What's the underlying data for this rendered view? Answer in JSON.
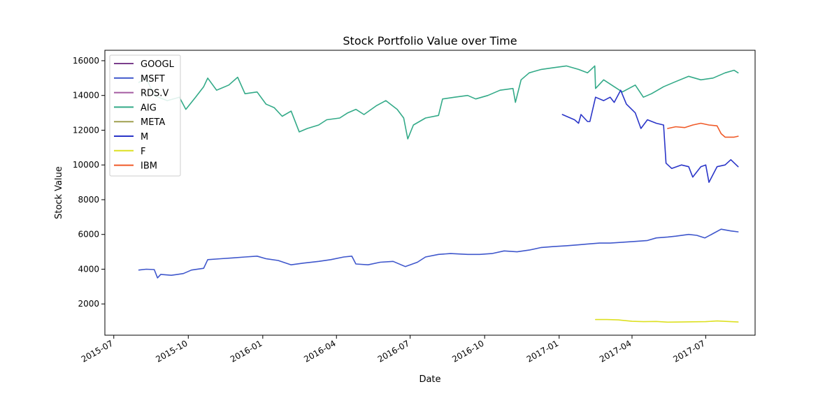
{
  "chart_data": {
    "type": "line",
    "title": "Stock Portfolio Value over Time",
    "xlabel": "Date",
    "ylabel": "Stock Value",
    "x_type": "date",
    "xlim": [
      "2015-06-20",
      "2017-08-31"
    ],
    "ylim": [
      200,
      16600
    ],
    "x_ticks": [
      {
        "date": "2015-07-01",
        "label": "2015-07"
      },
      {
        "date": "2015-10-01",
        "label": "2015-10"
      },
      {
        "date": "2016-01-01",
        "label": "2016-01"
      },
      {
        "date": "2016-04-01",
        "label": "2016-04"
      },
      {
        "date": "2016-07-01",
        "label": "2016-07"
      },
      {
        "date": "2016-10-01",
        "label": "2016-10"
      },
      {
        "date": "2017-01-01",
        "label": "2017-01"
      },
      {
        "date": "2017-04-01",
        "label": "2017-04"
      },
      {
        "date": "2017-07-01",
        "label": "2017-07"
      }
    ],
    "y_ticks": [
      2000,
      4000,
      6000,
      8000,
      10000,
      12000,
      14000,
      16000
    ],
    "grid": false,
    "legend_position": "top-left",
    "series": [
      {
        "name": "GOOGL",
        "color": "#7b3f8c",
        "points": []
      },
      {
        "name": "MSFT",
        "color": "#3f57cc",
        "points": [
          [
            "2015-08-01",
            3950
          ],
          [
            "2015-08-10",
            4000
          ],
          [
            "2015-08-20",
            3980
          ],
          [
            "2015-08-24",
            3500
          ],
          [
            "2015-08-28",
            3700
          ],
          [
            "2015-09-10",
            3650
          ],
          [
            "2015-09-25",
            3750
          ],
          [
            "2015-10-05",
            3950
          ],
          [
            "2015-10-20",
            4050
          ],
          [
            "2015-10-25",
            4550
          ],
          [
            "2015-11-10",
            4600
          ],
          [
            "2015-11-25",
            4650
          ],
          [
            "2015-12-10",
            4700
          ],
          [
            "2015-12-25",
            4750
          ],
          [
            "2016-01-05",
            4600
          ],
          [
            "2016-01-20",
            4500
          ],
          [
            "2016-02-05",
            4250
          ],
          [
            "2016-02-20",
            4350
          ],
          [
            "2016-03-10",
            4450
          ],
          [
            "2016-03-25",
            4550
          ],
          [
            "2016-04-10",
            4700
          ],
          [
            "2016-04-20",
            4750
          ],
          [
            "2016-04-25",
            4300
          ],
          [
            "2016-05-10",
            4250
          ],
          [
            "2016-05-25",
            4400
          ],
          [
            "2016-06-10",
            4450
          ],
          [
            "2016-06-25",
            4150
          ],
          [
            "2016-07-10",
            4400
          ],
          [
            "2016-07-20",
            4700
          ],
          [
            "2016-08-05",
            4850
          ],
          [
            "2016-08-20",
            4900
          ],
          [
            "2016-09-10",
            4850
          ],
          [
            "2016-09-25",
            4850
          ],
          [
            "2016-10-10",
            4900
          ],
          [
            "2016-10-25",
            5050
          ],
          [
            "2016-11-10",
            5000
          ],
          [
            "2016-11-25",
            5100
          ],
          [
            "2016-12-10",
            5250
          ],
          [
            "2016-12-25",
            5300
          ],
          [
            "2017-01-10",
            5350
          ],
          [
            "2017-01-25",
            5400
          ],
          [
            "2017-02-05",
            5450
          ],
          [
            "2017-02-20",
            5500
          ],
          [
            "2017-03-05",
            5500
          ],
          [
            "2017-03-20",
            5550
          ],
          [
            "2017-04-05",
            5600
          ],
          [
            "2017-04-20",
            5650
          ],
          [
            "2017-05-01",
            5800
          ],
          [
            "2017-05-15",
            5850
          ],
          [
            "2017-05-25",
            5900
          ],
          [
            "2017-06-10",
            6000
          ],
          [
            "2017-06-20",
            5950
          ],
          [
            "2017-06-30",
            5800
          ],
          [
            "2017-07-10",
            6050
          ],
          [
            "2017-07-20",
            6300
          ],
          [
            "2017-08-01",
            6200
          ],
          [
            "2017-08-10",
            6150
          ]
        ]
      },
      {
        "name": "RDS.V",
        "color": "#a45ba0",
        "points": []
      },
      {
        "name": "AIG",
        "color": "#33aa88",
        "points": [
          [
            "2015-08-01",
            14750
          ],
          [
            "2015-08-10",
            15000
          ],
          [
            "2015-08-20",
            14000
          ],
          [
            "2015-09-05",
            13700
          ],
          [
            "2015-09-20",
            13900
          ],
          [
            "2015-09-28",
            13200
          ],
          [
            "2015-10-10",
            13900
          ],
          [
            "2015-10-20",
            14500
          ],
          [
            "2015-10-25",
            15000
          ],
          [
            "2015-11-05",
            14300
          ],
          [
            "2015-11-20",
            14600
          ],
          [
            "2015-12-01",
            15050
          ],
          [
            "2015-12-10",
            14100
          ],
          [
            "2015-12-25",
            14200
          ],
          [
            "2016-01-05",
            13500
          ],
          [
            "2016-01-15",
            13300
          ],
          [
            "2016-01-25",
            12800
          ],
          [
            "2016-02-05",
            13100
          ],
          [
            "2016-02-15",
            11900
          ],
          [
            "2016-02-25",
            12100
          ],
          [
            "2016-03-10",
            12300
          ],
          [
            "2016-03-20",
            12600
          ],
          [
            "2016-04-05",
            12700
          ],
          [
            "2016-04-15",
            13000
          ],
          [
            "2016-04-25",
            13200
          ],
          [
            "2016-05-05",
            12900
          ],
          [
            "2016-05-20",
            13400
          ],
          [
            "2016-06-01",
            13700
          ],
          [
            "2016-06-15",
            13200
          ],
          [
            "2016-06-23",
            12700
          ],
          [
            "2016-06-28",
            11500
          ],
          [
            "2016-07-05",
            12300
          ],
          [
            "2016-07-20",
            12700
          ],
          [
            "2016-08-05",
            12850
          ],
          [
            "2016-08-10",
            13800
          ],
          [
            "2016-08-25",
            13900
          ],
          [
            "2016-09-10",
            14000
          ],
          [
            "2016-09-20",
            13800
          ],
          [
            "2016-10-05",
            14000
          ],
          [
            "2016-10-20",
            14300
          ],
          [
            "2016-11-05",
            14400
          ],
          [
            "2016-11-08",
            13600
          ],
          [
            "2016-11-15",
            14900
          ],
          [
            "2016-11-25",
            15300
          ],
          [
            "2016-12-10",
            15500
          ],
          [
            "2016-12-25",
            15600
          ],
          [
            "2017-01-10",
            15700
          ],
          [
            "2017-01-25",
            15500
          ],
          [
            "2017-02-05",
            15300
          ],
          [
            "2017-02-14",
            15700
          ],
          [
            "2017-02-15",
            14400
          ],
          [
            "2017-02-25",
            14900
          ],
          [
            "2017-03-10",
            14500
          ],
          [
            "2017-03-20",
            14200
          ],
          [
            "2017-04-05",
            14600
          ],
          [
            "2017-04-15",
            13900
          ],
          [
            "2017-04-25",
            14100
          ],
          [
            "2017-05-10",
            14500
          ],
          [
            "2017-05-25",
            14800
          ],
          [
            "2017-06-10",
            15100
          ],
          [
            "2017-06-25",
            14900
          ],
          [
            "2017-07-10",
            15000
          ],
          [
            "2017-07-25",
            15300
          ],
          [
            "2017-08-05",
            15450
          ],
          [
            "2017-08-10",
            15300
          ]
        ]
      },
      {
        "name": "META",
        "color": "#a0a050",
        "points": []
      },
      {
        "name": "M",
        "color": "#2a35c8",
        "points": [
          [
            "2017-01-05",
            12900
          ],
          [
            "2017-01-10",
            12800
          ],
          [
            "2017-01-20",
            12600
          ],
          [
            "2017-01-25",
            12400
          ],
          [
            "2017-01-28",
            12900
          ],
          [
            "2017-02-05",
            12500
          ],
          [
            "2017-02-08",
            12500
          ],
          [
            "2017-02-15",
            13900
          ],
          [
            "2017-02-25",
            13700
          ],
          [
            "2017-03-05",
            13900
          ],
          [
            "2017-03-10",
            13600
          ],
          [
            "2017-03-18",
            14300
          ],
          [
            "2017-03-25",
            13500
          ],
          [
            "2017-04-05",
            13000
          ],
          [
            "2017-04-12",
            12100
          ],
          [
            "2017-04-20",
            12600
          ],
          [
            "2017-05-01",
            12400
          ],
          [
            "2017-05-10",
            12300
          ],
          [
            "2017-05-13",
            10100
          ],
          [
            "2017-05-20",
            9800
          ],
          [
            "2017-06-01",
            10000
          ],
          [
            "2017-06-10",
            9900
          ],
          [
            "2017-06-15",
            9300
          ],
          [
            "2017-06-25",
            9900
          ],
          [
            "2017-07-01",
            10000
          ],
          [
            "2017-07-05",
            9000
          ],
          [
            "2017-07-15",
            9900
          ],
          [
            "2017-07-25",
            10000
          ],
          [
            "2017-08-01",
            10300
          ],
          [
            "2017-08-10",
            9900
          ]
        ]
      },
      {
        "name": "F",
        "color": "#dde020",
        "points": [
          [
            "2017-02-15",
            1100
          ],
          [
            "2017-03-01",
            1100
          ],
          [
            "2017-03-15",
            1080
          ],
          [
            "2017-04-01",
            1000
          ],
          [
            "2017-04-15",
            980
          ],
          [
            "2017-05-01",
            990
          ],
          [
            "2017-05-15",
            950
          ],
          [
            "2017-06-01",
            960
          ],
          [
            "2017-06-15",
            970
          ],
          [
            "2017-07-01",
            980
          ],
          [
            "2017-07-15",
            1020
          ],
          [
            "2017-08-01",
            980
          ],
          [
            "2017-08-10",
            960
          ]
        ]
      },
      {
        "name": "IBM",
        "color": "#f05a28",
        "points": [
          [
            "2017-05-15",
            12100
          ],
          [
            "2017-05-25",
            12200
          ],
          [
            "2017-06-05",
            12150
          ],
          [
            "2017-06-15",
            12300
          ],
          [
            "2017-06-25",
            12400
          ],
          [
            "2017-07-05",
            12300
          ],
          [
            "2017-07-15",
            12250
          ],
          [
            "2017-07-20",
            11800
          ],
          [
            "2017-07-25",
            11600
          ],
          [
            "2017-08-05",
            11600
          ],
          [
            "2017-08-10",
            11650
          ]
        ]
      }
    ]
  }
}
